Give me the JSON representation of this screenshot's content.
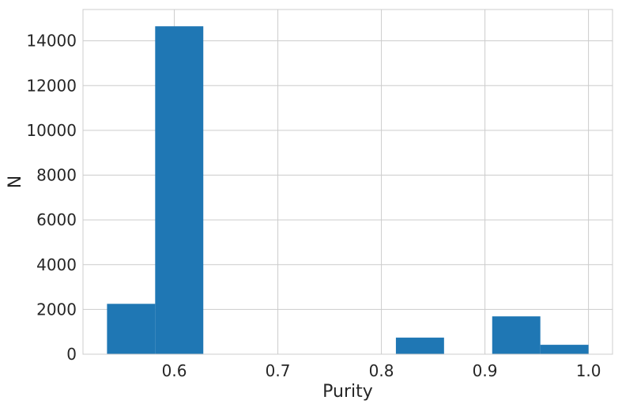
{
  "chart_data": {
    "type": "bar",
    "title": "",
    "xlabel": "Purity",
    "ylabel": "N",
    "xlim": [
      0.5118,
      1.0232
    ],
    "ylim": [
      0,
      15400
    ],
    "x_ticks": [
      0.6,
      0.7,
      0.8,
      0.9,
      1.0
    ],
    "x_tick_labels": [
      "0.6",
      "0.7",
      "0.8",
      "0.9",
      "1.0"
    ],
    "y_ticks": [
      0,
      2000,
      4000,
      6000,
      8000,
      10000,
      12000,
      14000
    ],
    "y_tick_labels": [
      "0",
      "2000",
      "4000",
      "6000",
      "8000",
      "10000",
      "12000",
      "14000"
    ],
    "grid": true,
    "bin_edges": [
      0.535,
      0.5815,
      0.628,
      0.6745,
      0.721,
      0.7675,
      0.814,
      0.8605,
      0.907,
      0.9535,
      1.0
    ],
    "values": [
      2250,
      14650,
      0,
      0,
      0,
      0,
      740,
      0,
      1690,
      420
    ],
    "bar_color": "#1f77b4",
    "grid_color": "#cccccc",
    "spine_color": "#cccccc"
  }
}
